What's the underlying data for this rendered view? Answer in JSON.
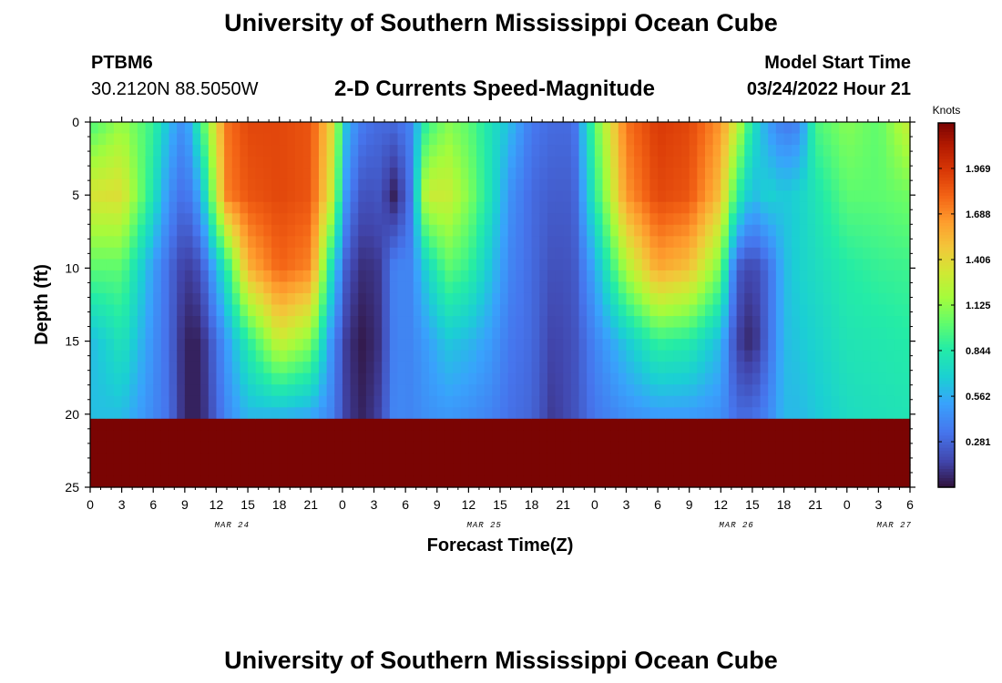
{
  "header": {
    "title": "University of Southern Mississippi Ocean Cube",
    "station_id": "PTBM6",
    "coordinates": "30.2120N  88.5050W",
    "subtitle": "2-D Currents Speed-Magnitude",
    "model_start_label": "Model Start Time",
    "model_start_value": "03/24/2022 Hour 21"
  },
  "footer": {
    "title": "University of Southern Mississippi Ocean Cube"
  },
  "chart_data": {
    "type": "heatmap",
    "title": "2-D Currents Speed-Magnitude",
    "xlabel": "Forecast Time(Z)",
    "ylabel": "Depth (ft)",
    "x_unit": "hours since Mar 24 00Z",
    "x_range": [
      0,
      78
    ],
    "y_range": [
      0,
      25
    ],
    "x_ticks": [
      0,
      3,
      6,
      9,
      12,
      15,
      18,
      21,
      24,
      27,
      30,
      33,
      36,
      39,
      42,
      45,
      48,
      51,
      54,
      57,
      60,
      63,
      66,
      69,
      72,
      75,
      78
    ],
    "x_tick_labels": [
      "0",
      "3",
      "6",
      "9",
      "12",
      "15",
      "18",
      "21",
      "0",
      "3",
      "6",
      "9",
      "12",
      "15",
      "18",
      "21",
      "0",
      "3",
      "6",
      "9",
      "12",
      "15",
      "18",
      "21",
      "0",
      "3",
      "6"
    ],
    "date_labels": [
      {
        "hour": 13.5,
        "text": "MAR 24"
      },
      {
        "hour": 37.5,
        "text": "MAR 25"
      },
      {
        "hour": 61.5,
        "text": "MAR 26"
      },
      {
        "hour": 76.5,
        "text": "MAR 27"
      }
    ],
    "y_ticks": [
      0,
      5,
      10,
      15,
      20,
      25
    ],
    "y_tick_labels": [
      "0",
      "5",
      "10",
      "15",
      "20",
      "25"
    ],
    "colorbar": {
      "unit": "Knots",
      "range": [
        0,
        2.25
      ],
      "ticks": [
        0.281,
        0.562,
        0.844,
        1.125,
        1.406,
        1.688,
        1.969
      ],
      "tick_labels": [
        "0.281",
        "0.562",
        "0.844",
        "1.125",
        "1.406",
        "1.688",
        "1.969"
      ]
    },
    "hours": [
      0,
      3,
      6,
      7.5,
      9,
      10.5,
      13,
      15,
      18,
      21,
      23,
      24.5,
      26,
      27.5,
      29,
      30.5,
      32,
      34,
      36,
      38,
      40,
      42,
      44,
      46,
      48,
      51,
      54,
      57,
      60,
      61.5,
      63,
      64.5,
      66,
      67.5,
      69,
      72,
      75,
      78
    ],
    "depths": [
      0,
      5,
      10,
      15,
      20,
      25
    ],
    "speed_knots": [
      [
        0.95,
        1.35,
        1.0,
        0.6,
        0.62
      ],
      [
        1.15,
        1.38,
        1.0,
        0.8,
        0.62
      ],
      [
        0.9,
        0.8,
        0.5,
        0.45,
        0.42
      ],
      [
        0.6,
        0.45,
        0.3,
        0.3,
        0.32
      ],
      [
        0.42,
        0.3,
        0.12,
        0.05,
        0.05
      ],
      [
        0.9,
        0.55,
        0.2,
        0.05,
        0.05
      ],
      [
        1.75,
        1.72,
        0.85,
        0.5,
        0.42
      ],
      [
        1.9,
        1.85,
        1.55,
        0.85,
        0.6
      ],
      [
        1.9,
        1.9,
        1.8,
        1.3,
        0.6
      ],
      [
        1.85,
        1.85,
        1.7,
        1.1,
        0.55
      ],
      [
        1.4,
        1.3,
        0.75,
        0.45,
        0.4
      ],
      [
        0.55,
        0.4,
        0.2,
        0.1,
        0.12
      ],
      [
        0.35,
        0.2,
        0.08,
        0.02,
        0.05
      ],
      [
        0.3,
        0.22,
        0.12,
        0.1,
        0.15
      ],
      [
        0.3,
        0.03,
        0.4,
        0.4,
        0.42
      ],
      [
        0.4,
        0.35,
        0.4,
        0.4,
        0.4
      ],
      [
        0.9,
        1.3,
        0.7,
        0.5,
        0.45
      ],
      [
        1.1,
        1.3,
        1.0,
        0.65,
        0.48
      ],
      [
        1.0,
        1.1,
        0.9,
        0.6,
        0.45
      ],
      [
        0.8,
        0.8,
        0.65,
        0.5,
        0.4
      ],
      [
        0.6,
        0.45,
        0.4,
        0.35,
        0.32
      ],
      [
        0.35,
        0.3,
        0.3,
        0.3,
        0.28
      ],
      [
        0.3,
        0.25,
        0.2,
        0.15,
        0.12
      ],
      [
        0.3,
        0.25,
        0.22,
        0.2,
        0.2
      ],
      [
        1.0,
        0.85,
        0.55,
        0.4,
        0.35
      ],
      [
        1.75,
        1.65,
        1.2,
        0.65,
        0.45
      ],
      [
        1.95,
        1.9,
        1.6,
        0.9,
        0.5
      ],
      [
        1.9,
        1.85,
        1.5,
        0.85,
        0.5
      ],
      [
        1.65,
        1.5,
        1.05,
        0.6,
        0.45
      ],
      [
        1.3,
        0.9,
        0.25,
        0.15,
        0.3
      ],
      [
        0.8,
        0.6,
        0.15,
        0.05,
        0.3
      ],
      [
        0.5,
        0.7,
        0.3,
        0.3,
        0.4
      ],
      [
        0.35,
        0.65,
        0.6,
        0.6,
        0.6
      ],
      [
        0.4,
        0.7,
        0.7,
        0.65,
        0.6
      ],
      [
        0.95,
        0.8,
        0.75,
        0.7,
        0.65
      ],
      [
        1.1,
        1.0,
        0.85,
        0.8,
        0.75
      ],
      [
        1.0,
        1.0,
        0.9,
        0.82,
        0.78
      ],
      [
        1.3,
        1.05,
        0.92,
        0.85,
        0.8
      ]
    ]
  }
}
